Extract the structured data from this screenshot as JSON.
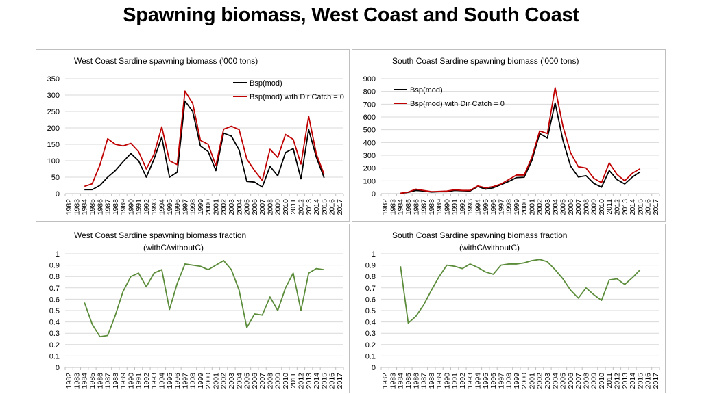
{
  "title": "Spawning biomass, West Coast and South Coast",
  "colors": {
    "black_series": "#000000",
    "red_series": "#c00000",
    "green_series": "#5b8c3a",
    "grid": "#d9d9d9"
  },
  "chart_data": [
    {
      "type": "line",
      "title": "West Coast Sardine spawning biomass ('000 tons)",
      "x": [
        "1982",
        "1983",
        "1984",
        "1985",
        "1986",
        "1987",
        "1988",
        "1989",
        "1990",
        "1991",
        "1992",
        "1993",
        "1994",
        "1995",
        "1996",
        "1997",
        "1998",
        "1999",
        "2000",
        "2001",
        "2002",
        "2003",
        "2004",
        "2005",
        "2006",
        "2007",
        "2008",
        "2009",
        "2010",
        "2011",
        "2012",
        "2013",
        "2014",
        "2015",
        "2016",
        "2017"
      ],
      "ylim": [
        0,
        350
      ],
      "yticks": [
        "0",
        "50",
        "100",
        "150",
        "200",
        "250",
        "300",
        "350"
      ],
      "grid": true,
      "legend": "top-right",
      "series": [
        {
          "name": "Bsp(mod)",
          "color": "#000000",
          "values": [
            null,
            null,
            12,
            12,
            25,
            50,
            70,
            97,
            122,
            100,
            50,
            105,
            172,
            50,
            65,
            282,
            250,
            145,
            128,
            70,
            184,
            175,
            133,
            37,
            35,
            20,
            83,
            54,
            125,
            137,
            45,
            195,
            110,
            48,
            null,
            null
          ]
        },
        {
          "name": "Bsp(mod) with Dir Catch = 0",
          "color": "#c00000",
          "values": [
            null,
            null,
            22,
            30,
            87,
            167,
            150,
            145,
            153,
            128,
            75,
            120,
            203,
            100,
            88,
            312,
            275,
            162,
            150,
            85,
            196,
            205,
            195,
            105,
            70,
            40,
            135,
            110,
            180,
            165,
            90,
            235,
            120,
            58,
            null,
            null
          ]
        }
      ]
    },
    {
      "type": "line",
      "title": "South Coast Sardine spawning biomass ('000 tons)",
      "x": [
        "1982",
        "1983",
        "1984",
        "1985",
        "1986",
        "1987",
        "1988",
        "1989",
        "1990",
        "1991",
        "1992",
        "1993",
        "1994",
        "1995",
        "1996",
        "1997",
        "1998",
        "1999",
        "2000",
        "2001",
        "2002",
        "2003",
        "2004",
        "2005",
        "2006",
        "2007",
        "2008",
        "2009",
        "2010",
        "2011",
        "2012",
        "2013",
        "2014",
        "2015",
        "2016",
        "2017"
      ],
      "ylim": [
        0,
        900
      ],
      "yticks": [
        "0",
        "100",
        "200",
        "300",
        "400",
        "500",
        "600",
        "700",
        "800",
        "900"
      ],
      "grid": true,
      "legend": "top-left",
      "series": [
        {
          "name": "Bsp(mod)",
          "color": "#000000",
          "values": [
            null,
            null,
            2,
            10,
            25,
            20,
            12,
            15,
            15,
            25,
            22,
            20,
            55,
            35,
            45,
            70,
            95,
            125,
            128,
            260,
            470,
            435,
            710,
            420,
            215,
            130,
            140,
            80,
            50,
            180,
            110,
            75,
            130,
            170,
            null,
            null
          ]
        },
        {
          "name": "Bsp(mod) with Dir Catch = 0",
          "color": "#c00000",
          "values": [
            null,
            null,
            3,
            12,
            35,
            25,
            15,
            17,
            20,
            30,
            25,
            25,
            60,
            45,
            55,
            75,
            110,
            145,
            145,
            285,
            490,
            470,
            830,
            530,
            320,
            210,
            200,
            120,
            85,
            240,
            150,
            100,
            160,
            195,
            null,
            null
          ]
        }
      ]
    },
    {
      "type": "line",
      "title": "West Coast Sardine spawning biomass fraction (withC/withoutC)",
      "x": [
        "1982",
        "1983",
        "1984",
        "1985",
        "1986",
        "1987",
        "1988",
        "1989",
        "1990",
        "1991",
        "1992",
        "1993",
        "1994",
        "1995",
        "1996",
        "1997",
        "1998",
        "1999",
        "2000",
        "2001",
        "2002",
        "2003",
        "2004",
        "2005",
        "2006",
        "2007",
        "2008",
        "2009",
        "2010",
        "2011",
        "2012",
        "2013",
        "2014",
        "2015",
        "2016",
        "2017"
      ],
      "ylim": [
        0,
        1
      ],
      "yticks": [
        "0",
        "0.1",
        "0.2",
        "0.3",
        "0.4",
        "0.5",
        "0.6",
        "0.7",
        "0.8",
        "0.9",
        "1"
      ],
      "grid": true,
      "series": [
        {
          "name": "",
          "color": "#5b8c3a",
          "values": [
            null,
            null,
            0.57,
            0.38,
            0.27,
            0.28,
            0.46,
            0.67,
            0.8,
            0.83,
            0.71,
            0.83,
            0.86,
            0.51,
            0.74,
            0.91,
            0.9,
            0.89,
            0.86,
            0.9,
            0.94,
            0.86,
            0.68,
            0.35,
            0.47,
            0.46,
            0.62,
            0.5,
            0.7,
            0.83,
            0.5,
            0.83,
            0.87,
            0.86,
            null,
            null
          ]
        }
      ]
    },
    {
      "type": "line",
      "title": "South Coast Sardine spawning biomass fraction (withC/withoutC)",
      "x": [
        "1982",
        "1983",
        "1984",
        "1985",
        "1986",
        "1987",
        "1988",
        "1989",
        "1990",
        "1991",
        "1992",
        "1993",
        "1994",
        "1995",
        "1996",
        "1997",
        "1998",
        "1999",
        "2000",
        "2001",
        "2002",
        "2003",
        "2004",
        "2005",
        "2006",
        "2007",
        "2008",
        "2009",
        "2010",
        "2011",
        "2012",
        "2013",
        "2014",
        "2015",
        "2016",
        "2017"
      ],
      "ylim": [
        0,
        1
      ],
      "yticks": [
        "0",
        "0.1",
        "0.2",
        "0.3",
        "0.4",
        "0.5",
        "0.6",
        "0.7",
        "0.8",
        "0.9",
        "1"
      ],
      "grid": true,
      "series": [
        {
          "name": "",
          "color": "#5b8c3a",
          "values": [
            null,
            null,
            0.89,
            0.39,
            0.45,
            0.55,
            0.68,
            0.8,
            0.9,
            0.89,
            0.87,
            0.91,
            0.88,
            0.84,
            0.82,
            0.9,
            0.91,
            0.91,
            0.92,
            0.94,
            0.95,
            0.93,
            0.86,
            0.78,
            0.68,
            0.61,
            0.7,
            0.64,
            0.59,
            0.77,
            0.78,
            0.73,
            0.79,
            0.86,
            null,
            null
          ]
        }
      ]
    }
  ]
}
